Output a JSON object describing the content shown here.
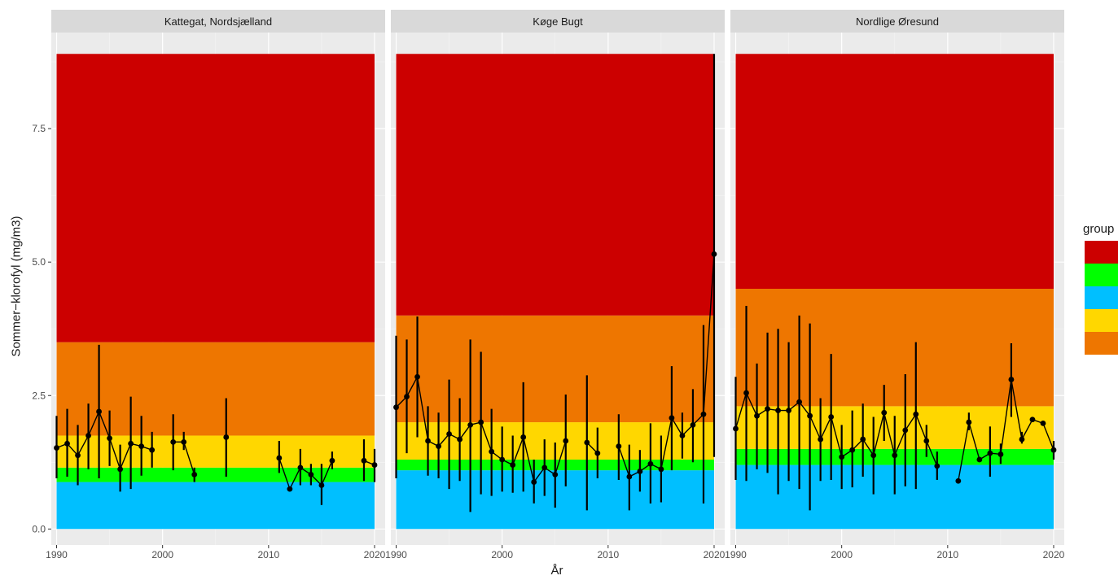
{
  "chart_data": {
    "type": "line",
    "xlabel": "År",
    "ylabel": "Sommer−klorofyl (mg/m3)",
    "xlim": [
      1989.5,
      2021
    ],
    "ylim": [
      -0.3,
      9.3
    ],
    "x_ticks": [
      1990,
      2000,
      2010,
      2020
    ],
    "y_ticks": [
      0.0,
      2.5,
      5.0,
      7.5
    ],
    "y_tick_labels": [
      "0.0",
      "2.5",
      "5.0",
      "7.5"
    ],
    "legend": {
      "title": "group",
      "position": "right",
      "colors": [
        "#CC0000",
        "#00FF00",
        "#00BFFF",
        "#FFD700",
        "#EE7600"
      ]
    },
    "panels": [
      {
        "title": "Kattegat, Nordsjælland",
        "bands": [
          {
            "color": "#00BFFF",
            "from": 0.0,
            "to": 0.88
          },
          {
            "color": "#00FF00",
            "from": 0.88,
            "to": 1.15
          },
          {
            "color": "#FFD700",
            "from": 1.15,
            "to": 1.75
          },
          {
            "color": "#EE7600",
            "from": 1.75,
            "to": 3.5
          },
          {
            "color": "#CC0000",
            "from": 3.5,
            "to": 8.9
          }
        ],
        "x": [
          1990,
          1991,
          1992,
          1993,
          1994,
          1995,
          1996,
          1997,
          1998,
          1999,
          2001,
          2002,
          2003,
          2006,
          2011,
          2012,
          2013,
          2014,
          2015,
          2016,
          2019,
          2020
        ],
        "y": [
          1.52,
          1.6,
          1.38,
          1.75,
          2.2,
          1.7,
          1.12,
          1.6,
          1.55,
          1.48,
          1.63,
          1.63,
          1.02,
          1.72,
          1.33,
          0.75,
          1.15,
          1.02,
          0.82,
          1.28,
          1.28,
          1.2
        ],
        "low": [
          0.95,
          0.98,
          0.82,
          1.12,
          0.95,
          1.18,
          0.7,
          0.75,
          1.0,
          1.15,
          1.1,
          1.48,
          0.88,
          0.98,
          1.05,
          0.72,
          0.82,
          0.82,
          0.45,
          1.12,
          0.9,
          0.88
        ],
        "high": [
          2.12,
          2.25,
          1.95,
          2.35,
          3.45,
          2.22,
          1.58,
          2.48,
          2.12,
          1.82,
          2.15,
          1.82,
          1.15,
          2.45,
          1.65,
          0.78,
          1.5,
          1.22,
          1.22,
          1.45,
          1.68,
          1.5
        ],
        "segments": [
          [
            0,
            9
          ],
          [
            10,
            12
          ],
          [
            14,
            19
          ],
          [
            20,
            21
          ]
        ]
      },
      {
        "title": "Køge Bugt",
        "bands": [
          {
            "color": "#00BFFF",
            "from": 0.0,
            "to": 1.1
          },
          {
            "color": "#00FF00",
            "from": 1.1,
            "to": 1.3
          },
          {
            "color": "#FFD700",
            "from": 1.3,
            "to": 2.0
          },
          {
            "color": "#EE7600",
            "from": 2.0,
            "to": 4.0
          },
          {
            "color": "#CC0000",
            "from": 4.0,
            "to": 8.9
          }
        ],
        "x": [
          1990,
          1991,
          1992,
          1993,
          1994,
          1995,
          1996,
          1997,
          1998,
          1999,
          2000,
          2001,
          2002,
          2003,
          2004,
          2005,
          2006,
          2008,
          2009,
          2011,
          2012,
          2013,
          2014,
          2015,
          2016,
          2017,
          2018,
          2019,
          2020
        ],
        "y": [
          2.28,
          2.48,
          2.85,
          1.65,
          1.55,
          1.78,
          1.68,
          1.95,
          2.0,
          1.45,
          1.3,
          1.2,
          1.72,
          0.88,
          1.15,
          1.02,
          1.65,
          1.62,
          1.42,
          1.55,
          0.98,
          1.08,
          1.22,
          1.12,
          2.08,
          1.75,
          1.95,
          2.15,
          5.15
        ],
        "low": [
          0.95,
          1.42,
          1.72,
          1.0,
          0.95,
          0.75,
          0.9,
          0.32,
          0.65,
          0.62,
          0.7,
          0.68,
          0.7,
          0.48,
          0.62,
          0.4,
          0.8,
          0.35,
          0.95,
          0.92,
          0.35,
          0.7,
          0.48,
          0.5,
          1.1,
          1.32,
          1.25,
          0.48,
          1.35
        ],
        "high": [
          3.62,
          3.55,
          3.98,
          2.3,
          2.18,
          2.8,
          2.45,
          3.55,
          3.32,
          2.25,
          1.92,
          1.75,
          2.75,
          1.3,
          1.68,
          1.62,
          2.52,
          2.88,
          1.9,
          2.15,
          1.58,
          1.48,
          1.98,
          1.75,
          3.05,
          2.18,
          2.62,
          3.82,
          8.9
        ],
        "segments": [
          [
            0,
            16
          ],
          [
            17,
            18
          ],
          [
            19,
            28
          ]
        ]
      },
      {
        "title": "Nordlige Øresund",
        "bands": [
          {
            "color": "#00BFFF",
            "from": 0.0,
            "to": 1.2
          },
          {
            "color": "#00FF00",
            "from": 1.2,
            "to": 1.5
          },
          {
            "color": "#FFD700",
            "from": 1.5,
            "to": 2.3
          },
          {
            "color": "#EE7600",
            "from": 2.3,
            "to": 4.5
          },
          {
            "color": "#CC0000",
            "from": 4.5,
            "to": 8.9
          }
        ],
        "x": [
          1990,
          1991,
          1992,
          1993,
          1994,
          1995,
          1996,
          1997,
          1998,
          1999,
          2000,
          2001,
          2002,
          2003,
          2004,
          2005,
          2006,
          2007,
          2008,
          2009,
          2011,
          2012,
          2013,
          2014,
          2015,
          2016,
          2017,
          2018,
          2019,
          2020
        ],
        "y": [
          1.88,
          2.55,
          2.12,
          2.25,
          2.22,
          2.22,
          2.38,
          2.12,
          1.68,
          2.1,
          1.35,
          1.48,
          1.68,
          1.38,
          2.18,
          1.38,
          1.85,
          2.15,
          1.65,
          1.18,
          0.9,
          2.0,
          1.3,
          1.42,
          1.4,
          2.8,
          1.68,
          2.05,
          1.98,
          1.48
        ],
        "low": [
          0.92,
          0.9,
          1.12,
          1.05,
          0.65,
          0.9,
          0.75,
          0.35,
          0.9,
          0.92,
          0.75,
          0.78,
          0.98,
          0.65,
          1.65,
          0.65,
          0.8,
          0.75,
          1.35,
          0.92,
          0.9,
          1.85,
          1.28,
          0.98,
          1.22,
          2.1,
          1.6,
          2.05,
          1.98,
          1.3
        ],
        "high": [
          2.85,
          4.18,
          3.1,
          3.68,
          3.75,
          3.5,
          4.0,
          3.85,
          2.45,
          3.28,
          1.95,
          2.22,
          2.35,
          2.1,
          2.7,
          2.12,
          2.9,
          3.5,
          1.95,
          1.45,
          0.9,
          2.18,
          1.35,
          1.92,
          1.6,
          3.48,
          1.82,
          2.05,
          1.98,
          1.65
        ],
        "segments": [
          [
            0,
            19
          ],
          [
            20,
            29
          ]
        ]
      }
    ]
  }
}
